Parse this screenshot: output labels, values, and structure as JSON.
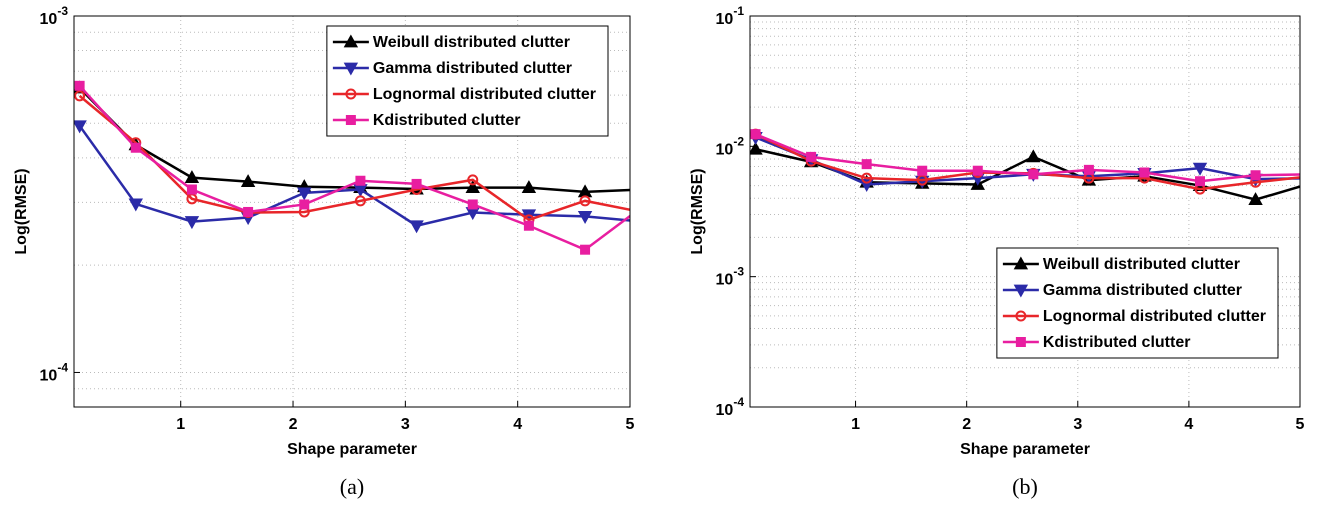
{
  "chart_data": [
    {
      "type": "line",
      "caption": "(a)",
      "x_label": "Shape parameter",
      "y_label": "Log(RMSE)",
      "log_y": true,
      "grid": true,
      "legend_loc": "upper right",
      "xlim": [
        0.05,
        5
      ],
      "xticks": [
        1,
        2,
        3,
        4,
        5
      ],
      "ylim": [
        8e-05,
        0.001
      ],
      "yticks": [
        {
          "value": 0.0001,
          "label": "10^-4"
        },
        {
          "value": 0.001,
          "label": "10^-3"
        }
      ],
      "x": [
        0.1,
        0.6,
        1.1,
        1.6,
        2.1,
        2.6,
        3.1,
        3.6,
        4.1,
        4.6,
        5.1
      ],
      "series": [
        {
          "name": "Weibull distributed clutter",
          "color": "#000000",
          "marker": "triangle-up",
          "values": [
            0.000628,
            0.000435,
            0.000352,
            0.000343,
            0.000332,
            0.00033,
            0.000327,
            0.00033,
            0.00033,
            0.000321,
            0.000326
          ]
        },
        {
          "name": "Gamma distributed clutter",
          "color": "#2b2ba8",
          "marker": "triangle-down",
          "values": [
            0.000492,
            0.000297,
            0.000265,
            0.000272,
            0.000319,
            0.000326,
            0.000258,
            0.000281,
            0.000277,
            0.000274,
            0.000265
          ]
        },
        {
          "name": "Lognormal distributed clutter",
          "color": "#e8262a",
          "marker": "circle",
          "values": [
            0.000597,
            0.000441,
            0.000307,
            0.000281,
            0.000282,
            0.000303,
            0.000326,
            0.000347,
            0.000268,
            0.000303,
            0.000282
          ]
        },
        {
          "name": "Kdistributed clutter",
          "color": "#e81ea0",
          "marker": "square",
          "values": [
            0.000637,
            0.000427,
            0.000326,
            0.000282,
            0.000296,
            0.000345,
            0.000338,
            0.000296,
            0.000258,
            0.000221,
            0.00029
          ]
        }
      ]
    },
    {
      "type": "line",
      "caption": "(b)",
      "x_label": "Shape parameter",
      "y_label": "Log(RMSE)",
      "log_y": true,
      "grid": true,
      "legend_loc": "lower right",
      "xlim": [
        0.05,
        5
      ],
      "xticks": [
        1,
        2,
        3,
        4,
        5
      ],
      "ylim": [
        0.0001,
        0.1
      ],
      "yticks": [
        {
          "value": 0.0001,
          "label": "10^-4"
        },
        {
          "value": 0.001,
          "label": "10^-3"
        },
        {
          "value": 0.01,
          "label": "10^-2"
        },
        {
          "value": 0.1,
          "label": "10^-1"
        }
      ],
      "x": [
        0.1,
        0.6,
        1.1,
        1.6,
        2.1,
        2.6,
        3.1,
        3.6,
        4.1,
        4.6,
        5.1
      ],
      "series": [
        {
          "name": "Weibull distributed clutter",
          "color": "#000000",
          "marker": "triangle-up",
          "values": [
            0.0095,
            0.0076,
            0.0053,
            0.0052,
            0.0051,
            0.0083,
            0.0055,
            0.0059,
            0.005,
            0.0039,
            0.0052
          ]
        },
        {
          "name": "Gamma distributed clutter",
          "color": "#2b2ba8",
          "marker": "triangle-down",
          "values": [
            0.0117,
            0.0079,
            0.0051,
            0.0054,
            0.0057,
            0.0061,
            0.0059,
            0.0062,
            0.0068,
            0.0056,
            0.0057
          ]
        },
        {
          "name": "Lognormal distributed clutter",
          "color": "#e8262a",
          "marker": "circle",
          "values": [
            0.0124,
            0.0077,
            0.0057,
            0.0055,
            0.0063,
            0.0062,
            0.0057,
            0.0057,
            0.0047,
            0.0053,
            0.0059
          ]
        },
        {
          "name": "Kdistributed clutter",
          "color": "#e81ea0",
          "marker": "square",
          "values": [
            0.0124,
            0.0083,
            0.0073,
            0.0065,
            0.0065,
            0.0061,
            0.0066,
            0.0063,
            0.0054,
            0.006,
            0.0061
          ]
        }
      ]
    }
  ]
}
